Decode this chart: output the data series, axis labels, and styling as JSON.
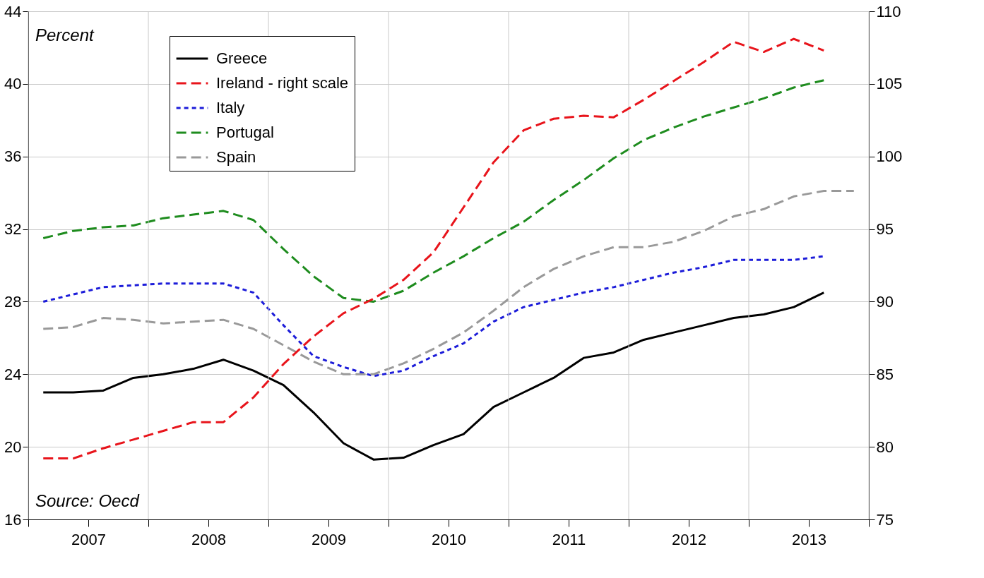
{
  "chart_data": {
    "type": "line",
    "x": [
      2007.125,
      2007.375,
      2007.625,
      2007.875,
      2008.125,
      2008.375,
      2008.625,
      2008.875,
      2009.125,
      2009.375,
      2009.625,
      2009.875,
      2010.125,
      2010.375,
      2010.625,
      2010.875,
      2011.125,
      2011.375,
      2011.625,
      2011.875,
      2012.125,
      2012.375,
      2012.625,
      2012.875,
      2013.125,
      2013.375,
      2013.625,
      2013.875
    ],
    "series": [
      {
        "name": "Greece",
        "color": "#000000",
        "line_style": "solid",
        "values": [
          23.0,
          23.0,
          23.1,
          23.8,
          24.0,
          24.3,
          24.8,
          24.2,
          23.4,
          21.9,
          20.2,
          19.3,
          19.4,
          20.1,
          20.7,
          22.2,
          23.0,
          23.8,
          24.9,
          25.2,
          25.9,
          26.3,
          26.7,
          27.1,
          27.3,
          27.7,
          28.5,
          null
        ]
      },
      {
        "name": "Ireland - right scale",
        "color": "#e8141b",
        "line_style": "dashed",
        "axis": "y2",
        "values": [
          79.2,
          79.2,
          79.9,
          80.5,
          81.1,
          81.7,
          81.7,
          83.4,
          85.7,
          87.6,
          89.2,
          90.2,
          91.5,
          93.4,
          96.5,
          99.6,
          101.8,
          102.6,
          102.8,
          102.7,
          103.9,
          105.2,
          106.5,
          107.9,
          107.2,
          108.1,
          107.3,
          null
        ]
      },
      {
        "name": "Italy",
        "color": "#1c1cd9",
        "line_style": "dotted",
        "values": [
          28.0,
          28.4,
          28.8,
          28.9,
          29.0,
          29.0,
          29.0,
          28.5,
          26.7,
          25.0,
          24.4,
          23.9,
          24.2,
          25.0,
          25.7,
          26.9,
          27.7,
          28.1,
          28.5,
          28.8,
          29.2,
          29.6,
          29.9,
          30.3,
          30.3,
          30.3,
          30.5,
          null
        ]
      },
      {
        "name": "Portugal",
        "color": "#1e8c1e",
        "line_style": "dashed",
        "values": [
          31.5,
          31.9,
          32.1,
          32.2,
          32.6,
          32.8,
          33.0,
          32.5,
          30.9,
          29.4,
          28.2,
          28.0,
          28.6,
          29.6,
          30.5,
          31.5,
          32.4,
          33.6,
          34.7,
          35.9,
          36.9,
          37.6,
          38.2,
          38.7,
          39.2,
          39.8,
          40.2,
          null
        ]
      },
      {
        "name": "Spain",
        "color": "#999999",
        "line_style": "dashed",
        "values": [
          26.5,
          26.6,
          27.1,
          27.0,
          26.8,
          26.9,
          27.0,
          26.5,
          25.6,
          24.7,
          24.0,
          24.0,
          24.6,
          25.4,
          26.3,
          27.5,
          28.8,
          29.8,
          30.5,
          31.0,
          31.0,
          31.3,
          31.9,
          32.7,
          33.1,
          33.8,
          34.1,
          34.1
        ]
      }
    ],
    "xlim": [
      2007,
      2014
    ],
    "xticks": [
      {
        "value": 2007,
        "label": null
      },
      {
        "value": 2007.5,
        "label": "2007"
      },
      {
        "value": 2008,
        "label": null
      },
      {
        "value": 2008.5,
        "label": "2008"
      },
      {
        "value": 2009,
        "label": null
      },
      {
        "value": 2009.5,
        "label": "2009"
      },
      {
        "value": 2010,
        "label": null
      },
      {
        "value": 2010.5,
        "label": "2010"
      },
      {
        "value": 2011,
        "label": null
      },
      {
        "value": 2011.5,
        "label": "2011"
      },
      {
        "value": 2012,
        "label": null
      },
      {
        "value": 2012.5,
        "label": "2012"
      },
      {
        "value": 2013,
        "label": null
      },
      {
        "value": 2013.5,
        "label": "2013"
      },
      {
        "value": 2014,
        "label": null
      }
    ],
    "ylim": [
      16,
      44
    ],
    "yticks": [
      16,
      20,
      24,
      28,
      32,
      36,
      40,
      44
    ],
    "y2lim": [
      75,
      110
    ],
    "y2ticks": [
      75,
      80,
      85,
      90,
      95,
      100,
      105,
      110
    ],
    "grid": true,
    "legend": "top left",
    "marker": "none",
    "annotations": [
      "Percent",
      "Source: Oecd"
    ]
  }
}
